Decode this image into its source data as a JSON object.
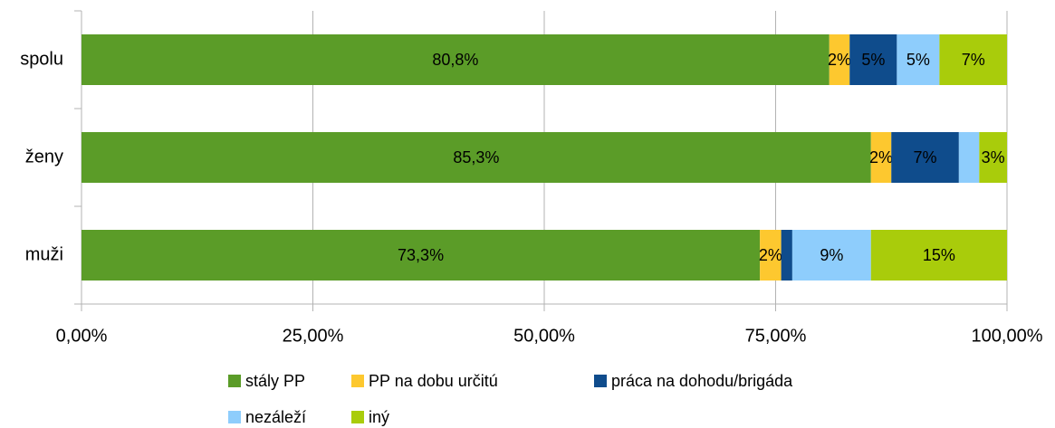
{
  "chart_data": {
    "type": "stacked-bar-horizontal",
    "categories": [
      "spolu",
      "ženy",
      "muži"
    ],
    "series": [
      {
        "name": "stály PP",
        "color": "#5b9c28",
        "values": [
          80.8,
          85.3,
          73.3
        ],
        "value_labels": [
          "80,8%",
          "85,3%",
          "73,3%"
        ]
      },
      {
        "name": "PP na dobu určitú",
        "color": "#fdc82f",
        "values": [
          2.2,
          2.2,
          2.3
        ],
        "value_labels": [
          "2%",
          "2%",
          "2%"
        ]
      },
      {
        "name": "práca na dohodu/brigáda",
        "color": "#0f4c8c",
        "values": [
          5.1,
          7.3,
          1.2
        ],
        "value_labels": [
          "5%",
          "7%",
          null
        ]
      },
      {
        "name": "nezáleží",
        "color": "#8ecdfc",
        "values": [
          4.6,
          2.2,
          8.5
        ],
        "value_labels": [
          "5%",
          null,
          "9%"
        ]
      },
      {
        "name": "iný",
        "color": "#a9cc0b",
        "values": [
          7.3,
          3.0,
          14.7
        ],
        "value_labels": [
          "7%",
          "3%",
          "15%"
        ]
      }
    ],
    "xlim": [
      0,
      100
    ],
    "xticks": [
      {
        "value": 0,
        "label": "0,00%"
      },
      {
        "value": 25,
        "label": "25,00%"
      },
      {
        "value": 50,
        "label": "50,00%"
      },
      {
        "value": 75,
        "label": "75,00%"
      },
      {
        "value": 100,
        "label": "100,00%"
      }
    ],
    "grid": true,
    "legend": "bottom"
  }
}
